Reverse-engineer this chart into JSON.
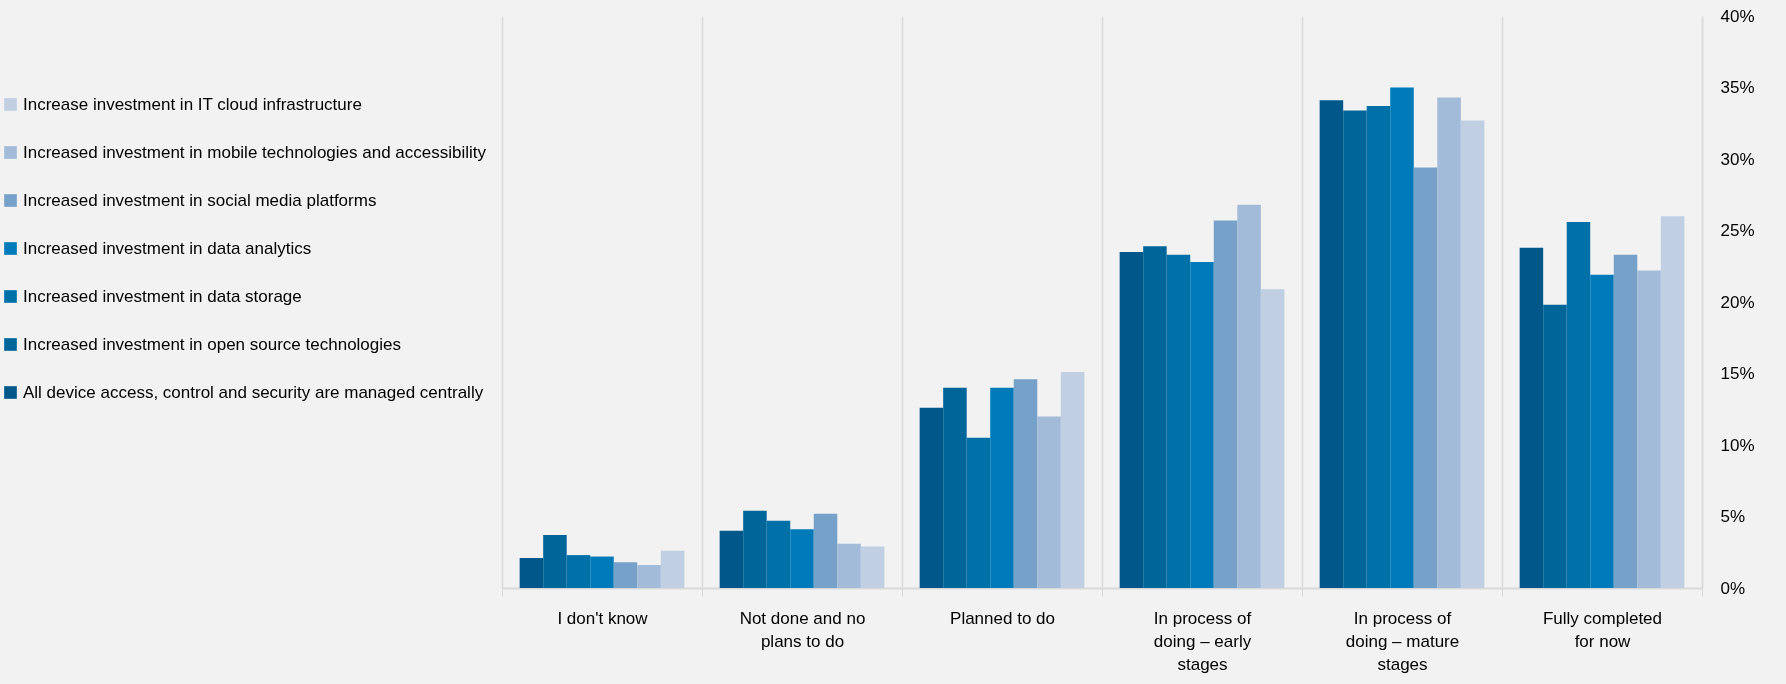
{
  "chart_data": {
    "type": "bar",
    "categories": [
      "I don't know",
      "Not done and no plans to do",
      "Planned to do",
      "In process of doing – early stages",
      "In process of doing – mature stages",
      "Fully completed for now"
    ],
    "series": [
      {
        "name": "All device access, control and security are managed centrally",
        "color": "#00578a",
        "values": [
          2.1,
          4.0,
          12.6,
          23.5,
          34.1,
          23.8
        ]
      },
      {
        "name": "Increased investment in open source technologies",
        "color": "#006699",
        "values": [
          3.7,
          5.4,
          14.0,
          23.9,
          33.4,
          19.8
        ]
      },
      {
        "name": "Increased investment in data storage",
        "color": "#0070a8",
        "values": [
          2.3,
          4.7,
          10.5,
          23.3,
          33.7,
          25.6
        ]
      },
      {
        "name": "Increased investment in data analytics",
        "color": "#007ab8",
        "values": [
          2.2,
          4.1,
          14.0,
          22.8,
          35.0,
          21.9
        ]
      },
      {
        "name": "Increased investment in social media platforms",
        "color": "#76a1c8",
        "values": [
          1.8,
          5.2,
          14.6,
          25.7,
          29.4,
          23.3
        ]
      },
      {
        "name": "Increased investment in mobile technologies and accessibility",
        "color": "#a2bbd8",
        "values": [
          1.6,
          3.1,
          12.0,
          26.8,
          34.3,
          22.2
        ]
      },
      {
        "name": "Increase investment in IT cloud infrastructure",
        "color": "#c0cfe2",
        "values": [
          2.6,
          2.9,
          15.1,
          20.9,
          32.7,
          26.0
        ]
      }
    ],
    "ylim": [
      0,
      40
    ],
    "yticks": [
      {
        "value": 0,
        "label": "0%"
      },
      {
        "value": 5,
        "label": "5%"
      },
      {
        "value": 10,
        "label": "10%"
      },
      {
        "value": 15,
        "label": "15%"
      },
      {
        "value": 20,
        "label": "20%"
      },
      {
        "value": 25,
        "label": "25%"
      },
      {
        "value": 30,
        "label": "30%"
      },
      {
        "value": 35,
        "label": "35%"
      },
      {
        "value": 40,
        "label": "40%"
      }
    ],
    "grid": "x",
    "legend": "left"
  }
}
